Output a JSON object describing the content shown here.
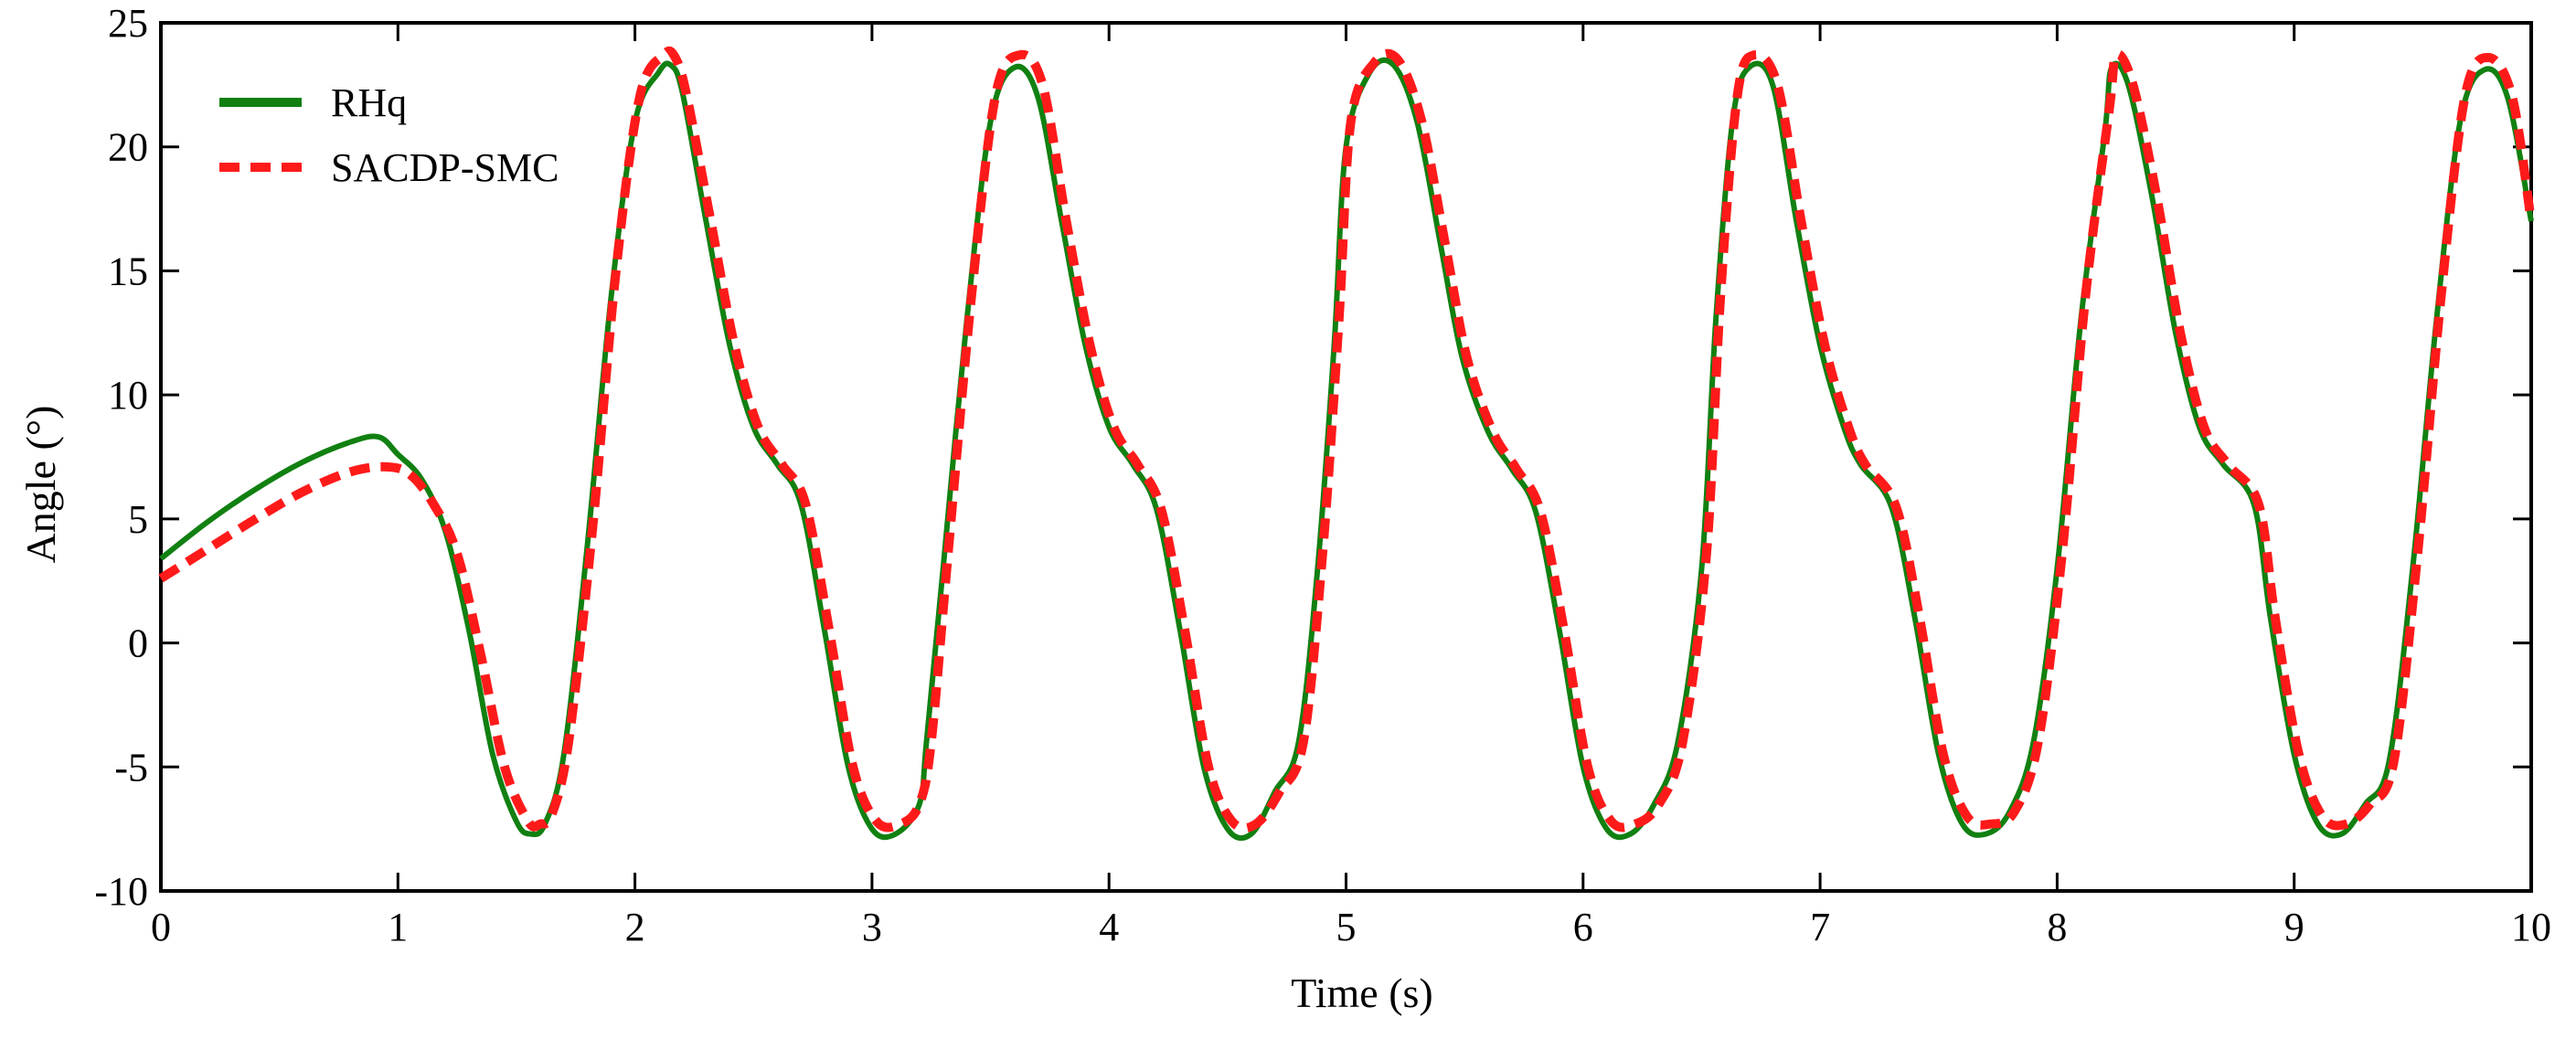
{
  "chart_data": {
    "type": "line",
    "title": "",
    "xlabel": "Time (s)",
    "ylabel": "Angle (°)",
    "xlim": [
      0,
      10
    ],
    "ylim": [
      -10,
      25
    ],
    "x_ticks": [
      0,
      1,
      2,
      3,
      4,
      5,
      6,
      7,
      8,
      9,
      10
    ],
    "y_ticks": [
      -10,
      -5,
      0,
      5,
      10,
      15,
      20,
      25
    ],
    "x_tick_labels": [
      "0",
      "1",
      "2",
      "3",
      "4",
      "5",
      "6",
      "7",
      "8",
      "9",
      "10"
    ],
    "y_tick_labels": [
      "-10",
      "-5",
      "0",
      "5",
      "10",
      "15",
      "20",
      "25"
    ],
    "grid": false,
    "legend_position": "top-left",
    "series": [
      {
        "name": "RHq",
        "color": "#118011",
        "style": "solid",
        "x": [
          0,
          0.2,
          0.4,
          0.6,
          0.8,
          0.92,
          1.0,
          1.1,
          1.2,
          1.3,
          1.4,
          1.5,
          1.56,
          1.62,
          1.7,
          1.8,
          1.9,
          2.0,
          2.1,
          2.15,
          2.2,
          2.3,
          2.4,
          2.5,
          2.6,
          2.7,
          2.8,
          2.9,
          3.0,
          3.1,
          3.2,
          3.23,
          3.3,
          3.4,
          3.5,
          3.6,
          3.7,
          3.8,
          3.9,
          4.0,
          4.1,
          4.2,
          4.3,
          4.4,
          4.5,
          4.6,
          4.7,
          4.8,
          4.88,
          4.95,
          5.0,
          5.1,
          5.2,
          5.3,
          5.4,
          5.49,
          5.6,
          5.7,
          5.8,
          5.9,
          6.0,
          6.1,
          6.2,
          6.3,
          6.4,
          6.5,
          6.56,
          6.63,
          6.7,
          6.8,
          6.9,
          7.0,
          7.1,
          7.17,
          7.3,
          7.4,
          7.5,
          7.6,
          7.7,
          7.8,
          7.9,
          8.0,
          8.1,
          8.2,
          8.23,
          8.3,
          8.4,
          8.5,
          8.6,
          8.7,
          8.83,
          8.9,
          9.0,
          9.1,
          9.2,
          9.3,
          9.4,
          9.5,
          9.6,
          9.7,
          9.8,
          9.9,
          10.0
        ],
        "y": [
          3.4,
          4.9,
          6.2,
          7.3,
          8.1,
          8.3,
          7.6,
          6.6,
          4.5,
          0.5,
          -4.5,
          -7.2,
          -7.7,
          -7.3,
          -4.5,
          4.0,
          14.0,
          21.0,
          23.0,
          23.3,
          22.2,
          17.0,
          12.0,
          8.7,
          7.2,
          5.6,
          0.5,
          -5.0,
          -7.5,
          -7.7,
          -6.5,
          -4.0,
          3.0,
          13.0,
          21.0,
          23.2,
          22.0,
          17.0,
          12.0,
          8.7,
          7.2,
          5.4,
          0.5,
          -5.0,
          -7.5,
          -7.7,
          -6.0,
          -4.0,
          3.0,
          12.0,
          20.0,
          23.0,
          23.3,
          21.0,
          16.0,
          11.5,
          8.5,
          7.0,
          5.3,
          0.5,
          -5.0,
          -7.5,
          -7.7,
          -6.5,
          -4.0,
          3.0,
          13.0,
          21.0,
          23.2,
          22.5,
          17.0,
          12.0,
          8.7,
          7.2,
          5.5,
          1.0,
          -4.5,
          -7.3,
          -7.7,
          -6.8,
          -4.0,
          3.0,
          13.0,
          20.5,
          23.2,
          22.5,
          18.0,
          12.5,
          8.7,
          7.2,
          5.6,
          1.0,
          -4.5,
          -7.3,
          -7.7,
          -6.5,
          -4.8,
          3.0,
          13.0,
          21.0,
          23.1,
          22.0,
          17.0
        ]
      },
      {
        "name": "SACDP-SMC",
        "color": "#ff1a1a",
        "style": "dashed",
        "x": [
          0,
          0.2,
          0.4,
          0.6,
          0.8,
          0.95,
          1.05,
          1.15,
          1.25,
          1.35,
          1.45,
          1.55,
          1.6,
          1.65,
          1.72,
          1.82,
          1.92,
          2.02,
          2.12,
          2.17,
          2.22,
          2.32,
          2.42,
          2.52,
          2.62,
          2.72,
          2.82,
          2.92,
          3.02,
          3.12,
          3.2,
          3.25,
          3.32,
          3.42,
          3.52,
          3.62,
          3.72,
          3.82,
          3.92,
          4.02,
          4.12,
          4.22,
          4.32,
          4.42,
          4.52,
          4.62,
          4.72,
          4.82,
          4.9,
          4.97,
          5.02,
          5.12,
          5.22,
          5.32,
          5.42,
          5.51,
          5.62,
          5.72,
          5.82,
          5.92,
          6.02,
          6.12,
          6.22,
          6.32,
          6.42,
          6.52,
          6.58,
          6.65,
          6.72,
          6.82,
          6.92,
          7.02,
          7.12,
          7.19,
          7.32,
          7.42,
          7.52,
          7.62,
          7.72,
          7.82,
          7.92,
          8.02,
          8.12,
          8.22,
          8.25,
          8.32,
          8.42,
          8.52,
          8.62,
          8.72,
          8.85,
          8.92,
          9.02,
          9.12,
          9.22,
          9.32,
          9.42,
          9.52,
          9.62,
          9.72,
          9.82,
          9.92,
          10.0
        ],
        "y": [
          2.6,
          3.8,
          5.0,
          6.1,
          6.9,
          7.1,
          6.8,
          5.6,
          3.6,
          -0.5,
          -5.0,
          -7.2,
          -7.3,
          -6.9,
          -4.0,
          4.5,
          15.0,
          22.0,
          23.7,
          23.6,
          22.0,
          17.0,
          12.0,
          8.7,
          7.2,
          5.6,
          0.5,
          -5.0,
          -7.2,
          -7.3,
          -6.5,
          -4.0,
          3.5,
          14.0,
          22.0,
          23.7,
          22.5,
          17.0,
          12.0,
          8.7,
          7.2,
          5.4,
          0.5,
          -5.0,
          -7.2,
          -7.3,
          -6.0,
          -4.0,
          3.5,
          13.0,
          21.0,
          23.4,
          23.5,
          21.0,
          16.0,
          11.5,
          8.5,
          7.0,
          5.3,
          0.5,
          -5.0,
          -7.2,
          -7.3,
          -6.5,
          -4.0,
          3.5,
          14.0,
          22.0,
          23.7,
          22.5,
          17.0,
          12.0,
          8.7,
          7.2,
          5.5,
          1.0,
          -4.5,
          -7.0,
          -7.3,
          -6.8,
          -4.0,
          3.5,
          14.0,
          21.5,
          23.7,
          22.5,
          18.0,
          12.5,
          8.7,
          7.2,
          5.6,
          1.0,
          -4.5,
          -7.0,
          -7.3,
          -6.5,
          -4.8,
          3.5,
          14.0,
          22.0,
          23.6,
          22.0,
          17.0
        ]
      }
    ]
  }
}
